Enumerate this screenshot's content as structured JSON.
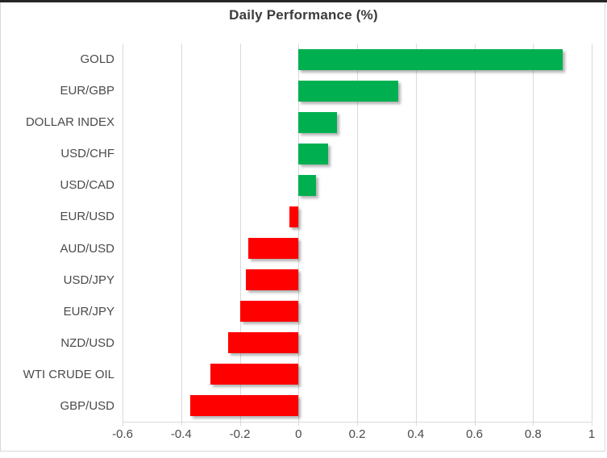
{
  "frame": {
    "top_bar_color": "#262626",
    "border_color": "#d9d9d9",
    "background": "#ffffff"
  },
  "chart_data": {
    "type": "bar",
    "orientation": "horizontal",
    "title": "Daily Performance (%)",
    "categories": [
      "GOLD",
      "EUR/GBP",
      "DOLLAR INDEX",
      "USD/CHF",
      "USD/CAD",
      "EUR/USD",
      "AUD/USD",
      "USD/JPY",
      "EUR/JPY",
      "NZD/USD",
      "WTI CRUDE OIL",
      "GBP/USD"
    ],
    "values": [
      0.9,
      0.34,
      0.13,
      0.1,
      0.06,
      -0.03,
      -0.17,
      -0.18,
      -0.2,
      -0.24,
      -0.3,
      -0.37
    ],
    "xlim": [
      -0.6,
      1.0
    ],
    "xticks": [
      -0.6,
      -0.4,
      -0.2,
      0,
      0.2,
      0.4,
      0.6,
      0.8,
      1
    ],
    "xtick_labels": [
      "-0.6",
      "-0.4",
      "-0.2",
      "0",
      "0.2",
      "0.4",
      "0.6",
      "0.8",
      "1"
    ],
    "grid": true,
    "legend": false,
    "colors": {
      "positive": "#00b050",
      "negative": "#ff0000",
      "gridline": "#d9d9d9",
      "axis_text": "#4a4a4a",
      "title_text": "#3b3b3b"
    }
  }
}
